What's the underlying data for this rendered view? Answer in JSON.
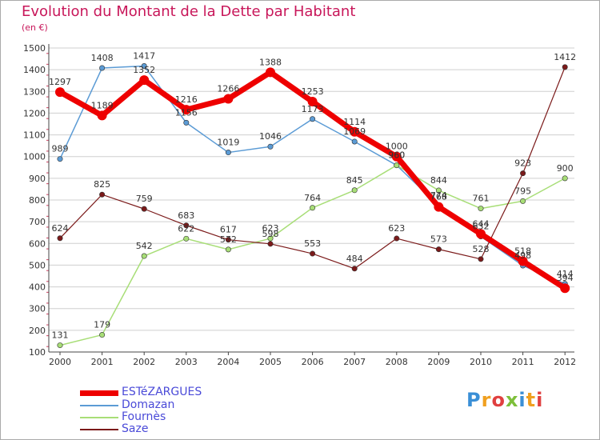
{
  "title": "Evolution du Montant de la Dette par Habitant",
  "subtitle": "(en €)",
  "logo_text": "Proxiti",
  "colors": {
    "title": "#c8175a",
    "legend_text": "#4a4ad8",
    "axis": "#444444",
    "grid": "#cfcfcf",
    "tick_minor": "#d04060"
  },
  "chart_data": {
    "type": "line",
    "title": "Evolution du Montant de la Dette par Habitant",
    "subtitle": "(en €)",
    "xlabel": "",
    "ylabel": "",
    "x": [
      "2000",
      "2001",
      "2002",
      "2003",
      "2004",
      "2005",
      "2006",
      "2007",
      "2008",
      "2009",
      "2010",
      "2011",
      "2012"
    ],
    "ylim": [
      100,
      1500
    ],
    "yticks": [
      100,
      200,
      300,
      400,
      500,
      600,
      700,
      800,
      900,
      1000,
      1100,
      1200,
      1300,
      1400,
      1500
    ],
    "grid": "horizontal",
    "legend_position": "bottom-left",
    "series": [
      {
        "name": "ESTéZARGUES",
        "color": "#ee0000",
        "width": 7,
        "values": [
          1297,
          1189,
          1352,
          1216,
          1266,
          1388,
          1253,
          1114,
          1000,
          768,
          644,
          518,
          394
        ]
      },
      {
        "name": "Domazan",
        "color": "#5b9bd5",
        "width": 1.5,
        "values": [
          989,
          1408,
          1417,
          1156,
          1019,
          1046,
          1173,
          1069,
          960,
          774,
          632,
          498,
          414
        ]
      },
      {
        "name": "Fournès",
        "color": "#a8de77",
        "width": 1.5,
        "values": [
          131,
          179,
          542,
          622,
          572,
          623,
          764,
          845,
          960,
          844,
          761,
          795,
          900
        ]
      },
      {
        "name": "Saze",
        "color": "#7b1a1a",
        "width": 1.2,
        "values": [
          624,
          825,
          759,
          683,
          617,
          598,
          553,
          484,
          623,
          573,
          528,
          923,
          1412
        ]
      }
    ]
  }
}
